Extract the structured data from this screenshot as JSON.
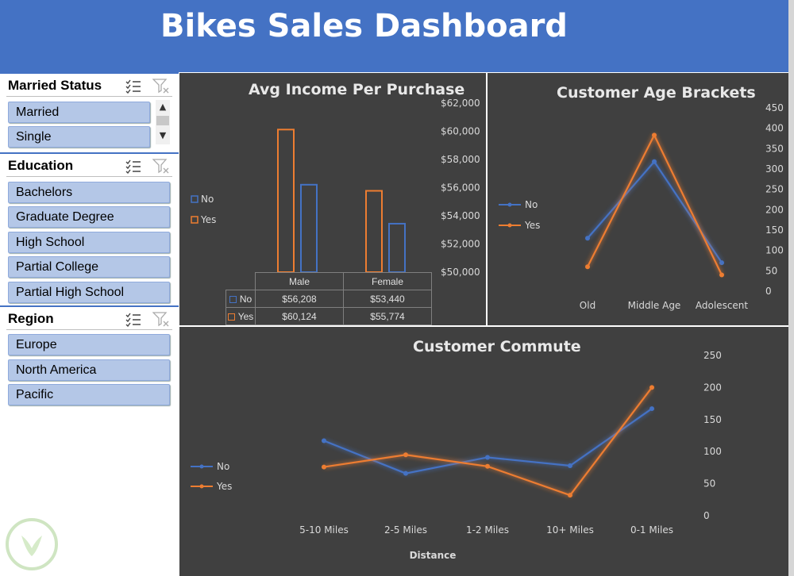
{
  "header": {
    "title": "Bikes Sales Dashboard"
  },
  "slicers": {
    "married": {
      "title": "Married Status",
      "items": [
        "Married",
        "Single"
      ]
    },
    "education": {
      "title": "Education",
      "items": [
        "Bachelors",
        "Graduate Degree",
        "High School",
        "Partial College",
        "Partial High School"
      ]
    },
    "region": {
      "title": "Region",
      "items": [
        "Europe",
        "North America",
        "Pacific"
      ]
    }
  },
  "colors": {
    "no": "#4472c4",
    "yes": "#ed7d31",
    "panel": "#404040",
    "header": "#4472c4"
  },
  "chart_data": [
    {
      "type": "bar",
      "title": "Avg Income Per Purchase",
      "categories": [
        "Male",
        "Female"
      ],
      "series": [
        {
          "name": "No",
          "values": [
            56208,
            53440
          ]
        },
        {
          "name": "Yes",
          "values": [
            60124,
            55774
          ]
        }
      ],
      "ylim": [
        50000,
        62000
      ],
      "yticks": [
        "$50,000",
        "$52,000",
        "$54,000",
        "$56,000",
        "$58,000",
        "$60,000",
        "$62,000"
      ],
      "table": {
        "header": [
          "Male",
          "Female"
        ],
        "rows": [
          {
            "label": "No",
            "cells": [
              "$56,208",
              "$53,440"
            ]
          },
          {
            "label": "Yes",
            "cells": [
              "$60,124",
              "$55,774"
            ]
          }
        ]
      },
      "legend": "left"
    },
    {
      "type": "line",
      "title": "Customer Age Brackets",
      "categories": [
        "Old",
        "Middle Age",
        "Adolescent"
      ],
      "series": [
        {
          "name": "No",
          "values": [
            130,
            318,
            70
          ]
        },
        {
          "name": "Yes",
          "values": [
            60,
            383,
            40
          ]
        }
      ],
      "ylim": [
        0,
        450
      ],
      "yticks": [
        "0",
        "50",
        "100",
        "150",
        "200",
        "250",
        "300",
        "350",
        "400",
        "450"
      ],
      "legend": "left"
    },
    {
      "type": "line",
      "title": "Customer Commute",
      "xlabel": "Distance",
      "categories": [
        "5-10 Miles",
        "2-5 Miles",
        "1-2 Miles",
        "10+ Miles",
        "0-1 Miles"
      ],
      "series": [
        {
          "name": "No",
          "values": [
            117,
            66,
            91,
            78,
            167
          ]
        },
        {
          "name": "Yes",
          "values": [
            76,
            95,
            77,
            32,
            200
          ]
        }
      ],
      "ylim": [
        0,
        250
      ],
      "yticks": [
        "0",
        "50",
        "100",
        "150",
        "200",
        "250"
      ],
      "legend": "left"
    }
  ]
}
